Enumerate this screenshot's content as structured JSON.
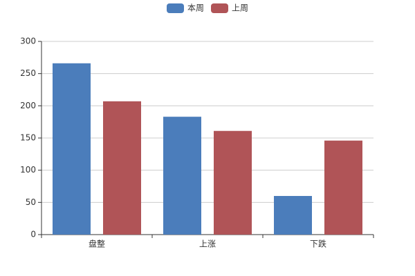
{
  "chart_data": {
    "type": "bar",
    "categories": [
      "盘整",
      "上涨",
      "下跌"
    ],
    "series": [
      {
        "name": "本周",
        "color": "#4b7dbb",
        "values": [
          266,
          183,
          60
        ]
      },
      {
        "name": "上周",
        "color": "#b05457",
        "values": [
          207,
          161,
          146
        ]
      }
    ],
    "ylim": [
      0,
      300
    ],
    "yticks": [
      0,
      50,
      100,
      150,
      200,
      250,
      300
    ],
    "grid": true
  }
}
